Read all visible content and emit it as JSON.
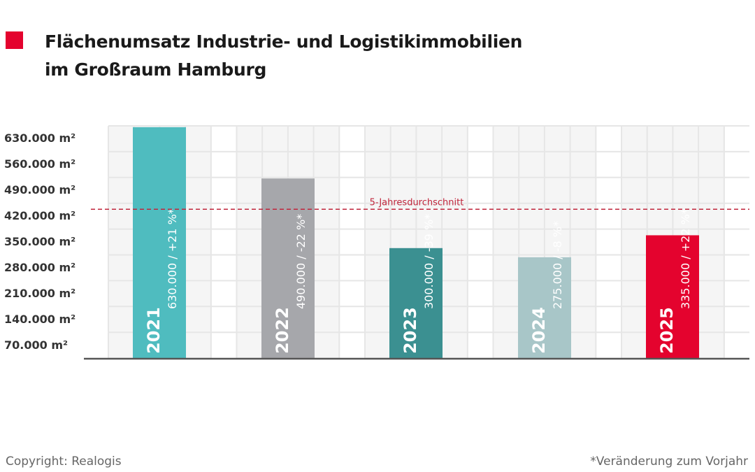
{
  "title_line1": "Flächenumsatz Industrie- und Logistikimmobilien",
  "title_line2": "im Großraum Hamburg",
  "footer": {
    "copyright": "Copyright: Realogis",
    "note": "*Veränderung zum Vorjahr"
  },
  "colors": {
    "accent": "#e4032e",
    "average_line": "#c0263c"
  },
  "chart_data": {
    "type": "bar",
    "title": "Flächenumsatz Industrie- und Logistikimmobilien im Großraum Hamburg",
    "unit": "m²",
    "categories": [
      "2021",
      "2022",
      "2023",
      "2024",
      "2025"
    ],
    "values": [
      630000,
      490000,
      300000,
      275000,
      335000
    ],
    "labels": [
      "630.000 / +21 %*",
      "490.000 / -22 %*",
      "300.000 / -39 %*",
      "275.000 / -8 %*",
      "335.000 / +22 %*"
    ],
    "bar_colors": [
      "#4fbcbf",
      "#a6a7ab",
      "#3b9091",
      "#a8c6c8",
      "#e4032e"
    ],
    "y_ticks": [
      "70.000 m²",
      "140.000 m²",
      "210.000 m²",
      "280.000 m²",
      "350.000 m²",
      "420.000 m²",
      "490.000 m²",
      "560.000 m²",
      "630.000 m²"
    ],
    "y_tick_values": [
      70000,
      140000,
      210000,
      280000,
      350000,
      420000,
      490000,
      560000,
      630000
    ],
    "reference_line": {
      "label": "5-Jahresdurchschnitt",
      "value": 406000,
      "style": "dashed"
    },
    "grid": true
  }
}
